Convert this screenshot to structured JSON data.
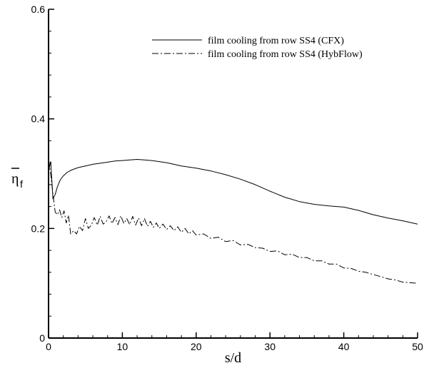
{
  "chart_data": {
    "type": "line",
    "xlabel": "s/d",
    "ylabel": "η",
    "ylabel_subscript": "f",
    "xlim": [
      0,
      50
    ],
    "ylim": [
      0,
      0.6
    ],
    "x_ticks": [
      0,
      10,
      20,
      30,
      40,
      50
    ],
    "x_tick_labels": [
      "0",
      "10",
      "20",
      "30",
      "40",
      "50"
    ],
    "y_ticks": [
      0,
      0.2,
      0.4,
      0.6
    ],
    "y_tick_labels": [
      "0",
      "0.2",
      "0.4",
      "0.6"
    ],
    "grid": false,
    "legend_position": "top-right",
    "series": [
      {
        "name": "film cooling from row SS4 (CFX)",
        "line_style": "solid",
        "color": "#000000",
        "x": [
          0,
          0.3,
          0.6,
          0.9,
          1.2,
          1.6,
          2.0,
          2.5,
          3,
          4,
          5,
          6,
          7,
          8,
          9,
          10,
          11,
          12,
          13,
          14,
          15,
          16,
          17,
          18,
          19,
          20,
          22,
          24,
          26,
          28,
          30,
          32,
          34,
          36,
          38,
          40,
          42,
          44,
          46,
          48,
          50
        ],
        "y": [
          0.305,
          0.322,
          0.254,
          0.262,
          0.276,
          0.289,
          0.296,
          0.302,
          0.306,
          0.311,
          0.314,
          0.317,
          0.319,
          0.321,
          0.323,
          0.324,
          0.325,
          0.326,
          0.325,
          0.324,
          0.322,
          0.32,
          0.317,
          0.314,
          0.312,
          0.31,
          0.305,
          0.298,
          0.29,
          0.28,
          0.268,
          0.257,
          0.249,
          0.244,
          0.241,
          0.239,
          0.233,
          0.225,
          0.219,
          0.214,
          0.208
        ]
      },
      {
        "name": "film cooling from row SS4 (HybFlow)",
        "line_style": "dashdot",
        "color": "#000000",
        "x": [
          0,
          0.3,
          0.6,
          0.9,
          1.2,
          1.5,
          1.8,
          2.1,
          2.4,
          2.7,
          3.0,
          3.4,
          3.8,
          4.2,
          4.6,
          5.0,
          5.4,
          5.8,
          6.2,
          6.6,
          7.0,
          7.4,
          7.8,
          8.2,
          8.6,
          9.0,
          9.4,
          9.8,
          10.2,
          10.6,
          11.0,
          11.4,
          11.8,
          12.2,
          12.6,
          13.0,
          13.4,
          13.8,
          14.2,
          14.6,
          15.0,
          15.5,
          16,
          16.5,
          17,
          17.5,
          18,
          18.5,
          19,
          19.5,
          20,
          21,
          22,
          23,
          24,
          25,
          26,
          27,
          28,
          29,
          30,
          31,
          32,
          33,
          34,
          35,
          36,
          37,
          38,
          39,
          40,
          41,
          42,
          43,
          44,
          45,
          46,
          47,
          48,
          49,
          50
        ],
        "y": [
          0.325,
          0.298,
          0.262,
          0.23,
          0.225,
          0.234,
          0.22,
          0.232,
          0.21,
          0.224,
          0.19,
          0.196,
          0.19,
          0.204,
          0.196,
          0.218,
          0.2,
          0.206,
          0.22,
          0.206,
          0.222,
          0.208,
          0.212,
          0.223,
          0.209,
          0.22,
          0.207,
          0.223,
          0.209,
          0.218,
          0.207,
          0.222,
          0.206,
          0.219,
          0.205,
          0.218,
          0.204,
          0.213,
          0.202,
          0.21,
          0.2,
          0.208,
          0.198,
          0.205,
          0.196,
          0.203,
          0.193,
          0.2,
          0.19,
          0.196,
          0.188,
          0.19,
          0.182,
          0.184,
          0.176,
          0.178,
          0.17,
          0.171,
          0.165,
          0.164,
          0.158,
          0.159,
          0.152,
          0.153,
          0.147,
          0.147,
          0.141,
          0.141,
          0.135,
          0.135,
          0.128,
          0.127,
          0.122,
          0.12,
          0.116,
          0.112,
          0.108,
          0.106,
          0.102,
          0.101,
          0.1
        ]
      }
    ]
  }
}
